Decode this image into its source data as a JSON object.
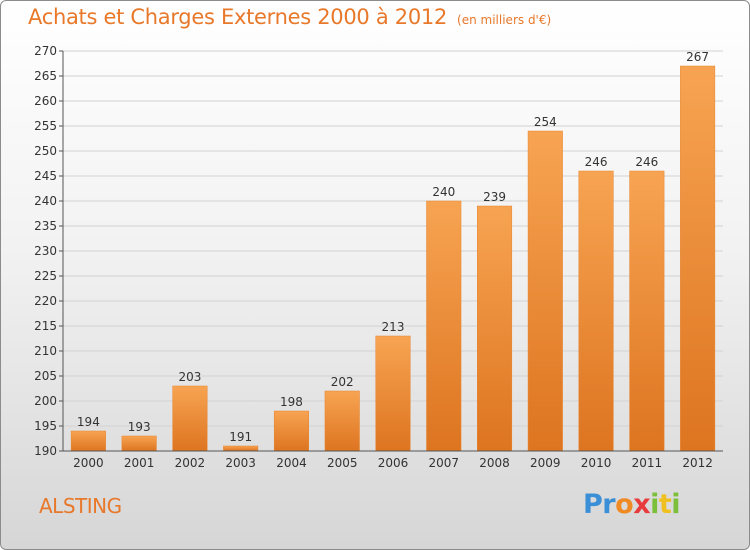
{
  "chart_data": {
    "type": "bar",
    "title": "Achats et Charges Externes 2000 à 2012",
    "unit_label": "(en milliers d'€)",
    "categories": [
      "2000",
      "2001",
      "2002",
      "2003",
      "2004",
      "2005",
      "2006",
      "2007",
      "2008",
      "2009",
      "2010",
      "2011",
      "2012"
    ],
    "values": [
      194,
      193,
      203,
      191,
      198,
      202,
      213,
      240,
      239,
      254,
      246,
      246,
      267
    ],
    "ylim": [
      190,
      270
    ],
    "ytick_step": 5,
    "grid": true,
    "bar_color": "#f0963e",
    "bar_color_dark": "#e07722",
    "accent_color": "#e8782a"
  },
  "commune": "ALSTING",
  "logo": {
    "letters": [
      {
        "ch": "P",
        "color": "#3a8fd6"
      },
      {
        "ch": "r",
        "color": "#3a8fd6"
      },
      {
        "ch": "o",
        "color": "#f08a24"
      },
      {
        "ch": "x",
        "color": "#e83c3c"
      },
      {
        "ch": "i",
        "color": "#7cbf3a"
      },
      {
        "ch": "t",
        "color": "#f0c020"
      },
      {
        "ch": "i",
        "color": "#7cbf3a"
      }
    ]
  }
}
